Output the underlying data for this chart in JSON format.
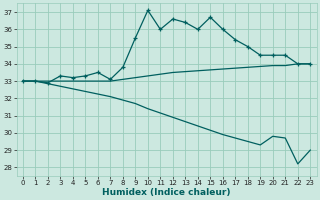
{
  "xlabel": "Humidex (Indice chaleur)",
  "background_color": "#cce8e0",
  "grid_color": "#99ccbb",
  "line_color": "#005f5f",
  "xlim": [
    -0.5,
    23.5
  ],
  "ylim": [
    27.5,
    37.5
  ],
  "yticks": [
    28,
    29,
    30,
    31,
    32,
    33,
    34,
    35,
    36,
    37
  ],
  "xticks": [
    0,
    1,
    2,
    3,
    4,
    5,
    6,
    7,
    8,
    9,
    10,
    11,
    12,
    13,
    14,
    15,
    16,
    17,
    18,
    19,
    20,
    21,
    22,
    23
  ],
  "line1_x": [
    0,
    1,
    2,
    3,
    4,
    5,
    6,
    7,
    8,
    9,
    10,
    11,
    12,
    13,
    14,
    15,
    16,
    17,
    18,
    19,
    20,
    21,
    22,
    23
  ],
  "line1_y": [
    33.0,
    33.0,
    33.0,
    33.0,
    33.0,
    33.0,
    33.0,
    33.0,
    33.1,
    33.2,
    33.3,
    33.4,
    33.5,
    33.55,
    33.6,
    33.65,
    33.7,
    33.75,
    33.8,
    33.85,
    33.9,
    33.9,
    34.0,
    34.0
  ],
  "line2_x": [
    0,
    1,
    2,
    3,
    4,
    5,
    6,
    7,
    8,
    9,
    10,
    11,
    12,
    13,
    14,
    15,
    16,
    17,
    18,
    19,
    20,
    21,
    22,
    23
  ],
  "line2_y": [
    33.0,
    33.0,
    32.9,
    33.3,
    33.2,
    33.3,
    33.5,
    33.1,
    33.8,
    35.5,
    37.1,
    36.0,
    36.6,
    36.4,
    36.0,
    36.7,
    36.0,
    35.4,
    35.0,
    34.5,
    34.5,
    34.5,
    34.0,
    34.0
  ],
  "line3_x": [
    0,
    1,
    2,
    3,
    4,
    5,
    6,
    7,
    8,
    9,
    10,
    11,
    12,
    13,
    14,
    15,
    16,
    17,
    18,
    19,
    20,
    21,
    22,
    23
  ],
  "line3_y": [
    33.0,
    33.0,
    32.85,
    32.7,
    32.55,
    32.4,
    32.25,
    32.1,
    31.9,
    31.7,
    31.4,
    31.15,
    30.9,
    30.65,
    30.4,
    30.15,
    29.9,
    29.7,
    29.5,
    29.3,
    29.8,
    29.7,
    28.2,
    29.0
  ]
}
